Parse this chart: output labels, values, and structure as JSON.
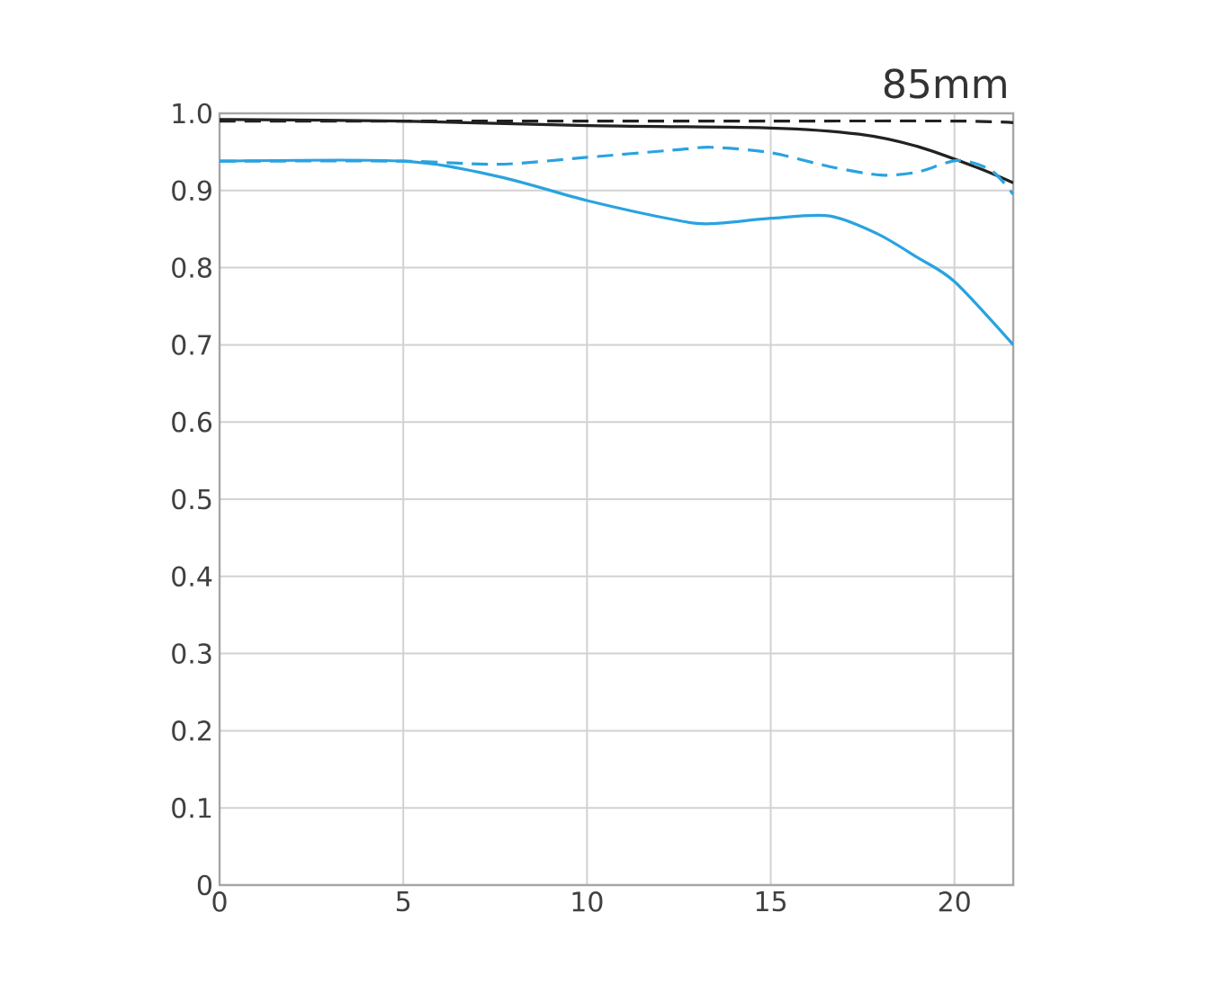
{
  "chart_data": {
    "type": "line",
    "title": "85mm",
    "xlim": [
      0,
      21.6
    ],
    "xticks": [
      0,
      5,
      10,
      15,
      20
    ],
    "ylim": [
      0,
      1.0
    ],
    "yticks": [
      0,
      0.1,
      0.2,
      0.3,
      0.4,
      0.5,
      0.6,
      0.7,
      0.8,
      0.9,
      {
        "value": 1.0,
        "label": "1.0"
      }
    ],
    "grid": true,
    "marker": "none",
    "series": [
      {
        "color": "#222222",
        "line_style": "solid",
        "x": [
          0,
          5,
          10,
          15,
          17.4,
          19,
          20.6,
          21.6
        ],
        "values": [
          0.992,
          0.99,
          0.984,
          0.981,
          0.973,
          0.957,
          0.93,
          0.91
        ]
      },
      {
        "color": "#222222",
        "line_style": "dashed",
        "x": [
          0,
          5,
          10,
          15,
          20,
          21.6
        ],
        "values": [
          0.99,
          0.99,
          0.99,
          0.99,
          0.99,
          0.988
        ]
      },
      {
        "color": "#29a3e0",
        "line_style": "solid",
        "x": [
          0,
          5,
          7.6,
          10,
          12.5,
          13.4,
          15,
          16.6,
          17.9,
          19,
          20,
          21.6
        ],
        "values": [
          0.938,
          0.938,
          0.918,
          0.887,
          0.861,
          0.857,
          0.864,
          0.867,
          0.844,
          0.813,
          0.782,
          0.7
        ]
      },
      {
        "color": "#29a3e0",
        "line_style": "dashed",
        "x": [
          0,
          5,
          7.6,
          10,
          12.5,
          13.4,
          15,
          16.6,
          18,
          19,
          20.1,
          21,
          21.6
        ],
        "values": [
          0.938,
          0.938,
          0.934,
          0.943,
          0.953,
          0.956,
          0.949,
          0.931,
          0.92,
          0.924,
          0.939,
          0.926,
          0.895
        ]
      }
    ]
  }
}
